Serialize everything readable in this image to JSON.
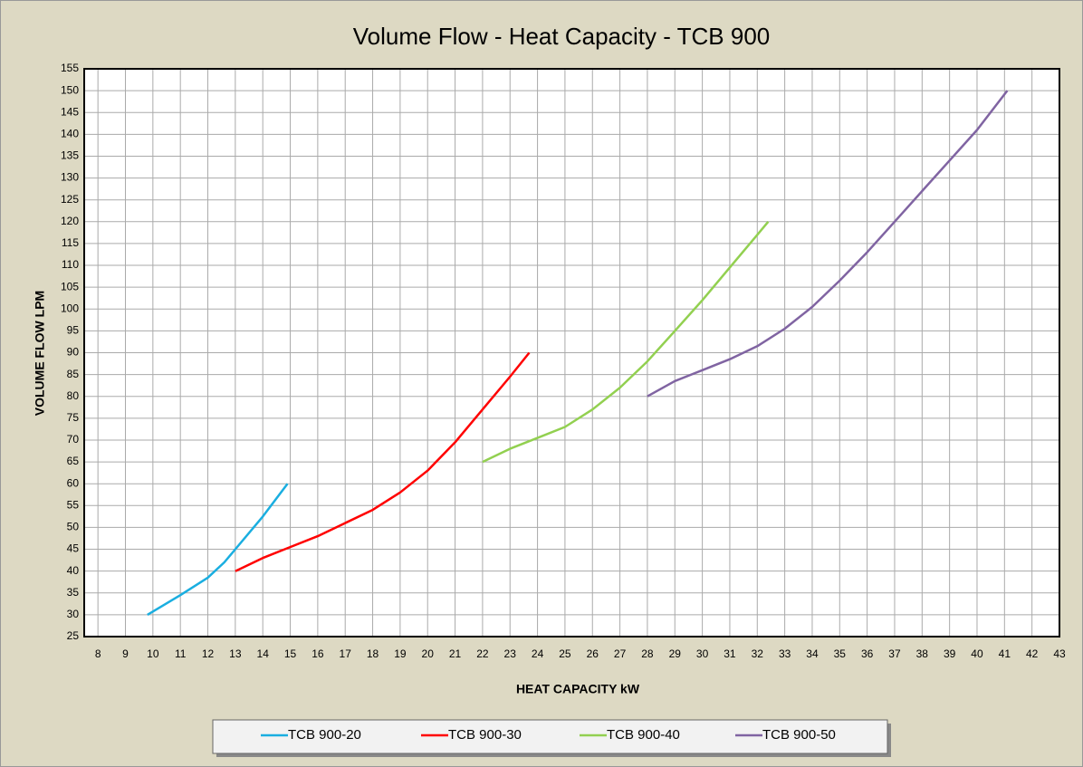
{
  "chart_data": {
    "type": "line",
    "title": "Volume Flow - Heat  Capacity - TCB 900",
    "x_label": "HEAT CAPACITY kW",
    "y_label": "VOLUME FLOW LPM",
    "xlim": [
      7.5,
      43
    ],
    "xticks": [
      8,
      9,
      10,
      11,
      12,
      13,
      14,
      15,
      16,
      17,
      18,
      19,
      20,
      21,
      22,
      23,
      24,
      25,
      26,
      27,
      28,
      29,
      30,
      31,
      32,
      33,
      34,
      35,
      36,
      37,
      38,
      39,
      40,
      41,
      42,
      43
    ],
    "ylim": [
      25,
      155
    ],
    "yticks": [
      25,
      30,
      35,
      40,
      45,
      50,
      55,
      60,
      65,
      70,
      75,
      80,
      85,
      90,
      95,
      100,
      105,
      110,
      115,
      120,
      125,
      130,
      135,
      140,
      145,
      150,
      155
    ],
    "grid": true,
    "legend": "bottom",
    "series": [
      {
        "name": "TCB 900-20",
        "color": "#1aaee0",
        "x": [
          9.8,
          11,
          12,
          12.6,
          13,
          14,
          14.9
        ],
        "values": [
          30,
          34.5,
          38.5,
          42,
          45,
          52.5,
          60
        ]
      },
      {
        "name": "TCB 900-30",
        "color": "#ff0000",
        "x": [
          13,
          14,
          15,
          16,
          17,
          18,
          19,
          20,
          21,
          22,
          23,
          23.7
        ],
        "values": [
          40,
          43,
          45.5,
          48,
          51,
          54,
          58,
          63,
          69.5,
          77,
          84.5,
          90
        ]
      },
      {
        "name": "TCB 900-40",
        "color": "#92d050",
        "x": [
          22,
          23,
          24,
          25,
          26,
          27,
          28,
          29,
          30,
          31,
          32,
          32.4
        ],
        "values": [
          65,
          68,
          70.5,
          73,
          77,
          82,
          88,
          95,
          102,
          109.5,
          117,
          120
        ]
      },
      {
        "name": "TCB 900-50",
        "color": "#8064a2",
        "x": [
          28,
          29,
          30,
          31,
          32,
          33,
          34,
          35,
          36,
          37,
          38,
          39,
          40,
          41.1
        ],
        "values": [
          80,
          83.5,
          86,
          88.5,
          91.5,
          95.5,
          100.5,
          106.5,
          113,
          120,
          127,
          134,
          141,
          150
        ]
      }
    ]
  }
}
